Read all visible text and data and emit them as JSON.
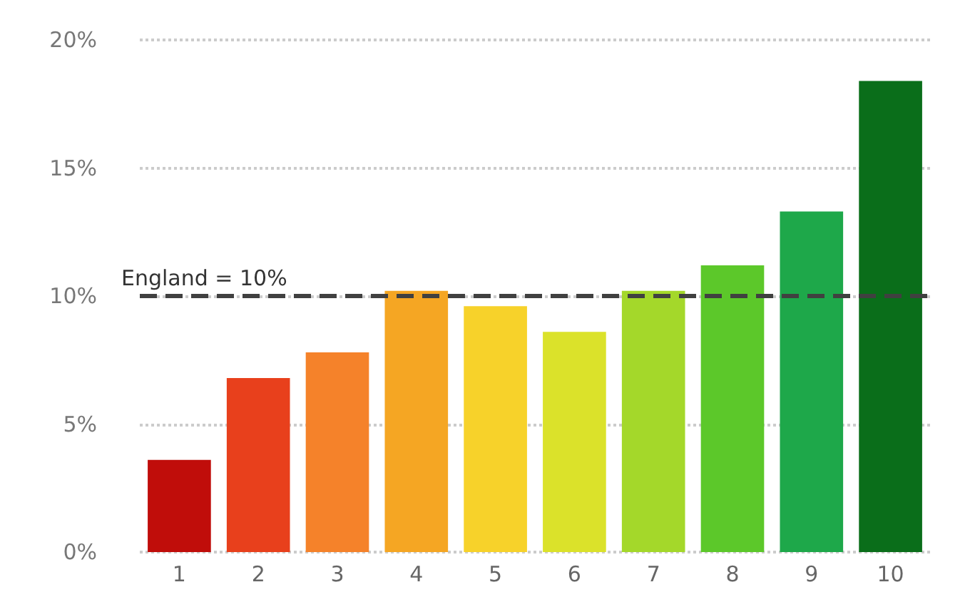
{
  "chart_data": {
    "type": "bar",
    "categories": [
      "1",
      "2",
      "3",
      "4",
      "5",
      "6",
      "7",
      "8",
      "9",
      "10"
    ],
    "values": [
      3.6,
      6.8,
      7.8,
      10.2,
      9.6,
      8.6,
      10.2,
      11.2,
      13.3,
      18.4
    ],
    "colors": [
      "#c00d0a",
      "#e8401c",
      "#f5822a",
      "#f5a623",
      "#f7d22a",
      "#dbe22a",
      "#a4d82a",
      "#5cc82a",
      "#1ea84a",
      "#0a6e1a"
    ],
    "ylim": [
      0,
      20
    ],
    "yticks": [
      {
        "value": 0,
        "label": "0%"
      },
      {
        "value": 5,
        "label": "5%"
      },
      {
        "value": 10,
        "label": "10%"
      },
      {
        "value": 15,
        "label": "15%"
      },
      {
        "value": 20,
        "label": "20%"
      }
    ],
    "grid": "y",
    "ref_lines": [
      {
        "axis": "y",
        "value": 10,
        "label": "England = 10%",
        "color": "#404040",
        "line_style": "dashed"
      }
    ]
  }
}
